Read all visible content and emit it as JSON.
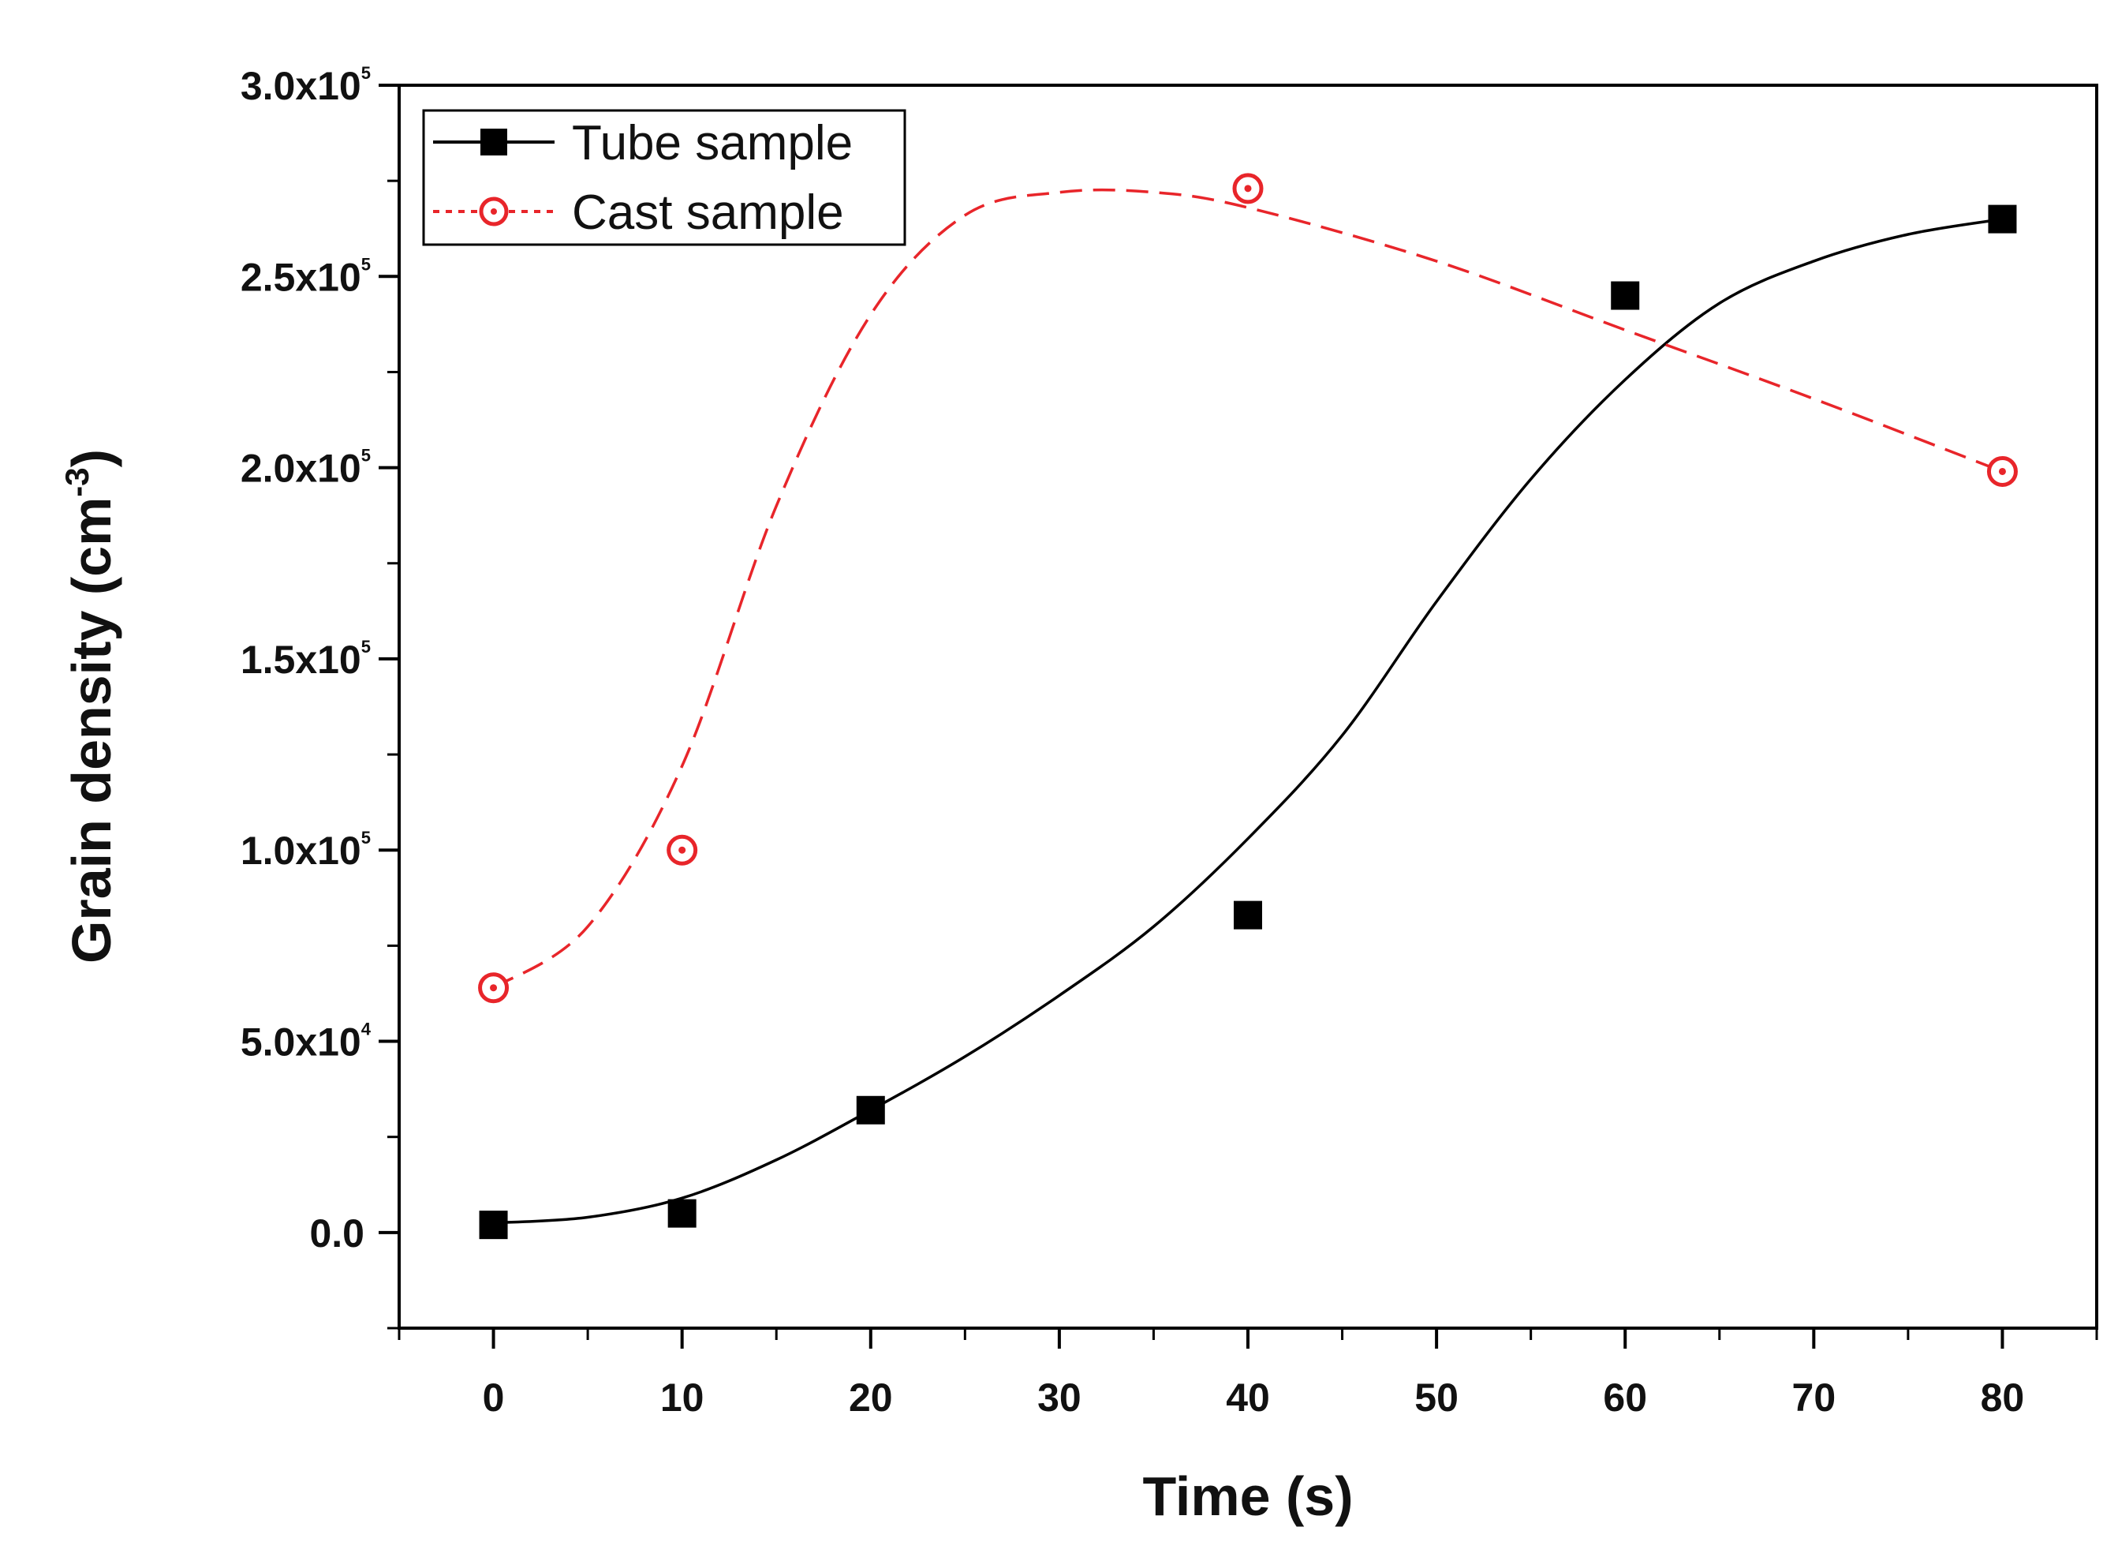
{
  "chart_data": {
    "type": "scatter",
    "title": "",
    "xlabel": "Time (s)",
    "ylabel": "Grain density (cm",
    "ylabel_superscript": "-3",
    "ylabel_close": ")",
    "xlim": [
      -5,
      85
    ],
    "ylim": [
      -25000,
      300000
    ],
    "x_ticks": [
      {
        "value": 0,
        "label": "0"
      },
      {
        "value": 10,
        "label": "10"
      },
      {
        "value": 20,
        "label": "20"
      },
      {
        "value": 30,
        "label": "30"
      },
      {
        "value": 40,
        "label": "40"
      },
      {
        "value": 50,
        "label": "50"
      },
      {
        "value": 60,
        "label": "60"
      },
      {
        "value": 70,
        "label": "70"
      },
      {
        "value": 80,
        "label": "80"
      }
    ],
    "y_ticks": [
      {
        "value": 0,
        "mantissa": "0.0",
        "exponent": ""
      },
      {
        "value": 50000,
        "mantissa": "5.0x10",
        "exponent": "4"
      },
      {
        "value": 100000,
        "mantissa": "1.0x10",
        "exponent": "5"
      },
      {
        "value": 150000,
        "mantissa": "1.5x10",
        "exponent": "5"
      },
      {
        "value": 200000,
        "mantissa": "2.0x10",
        "exponent": "5"
      },
      {
        "value": 250000,
        "mantissa": "2.5x10",
        "exponent": "5"
      },
      {
        "value": 300000,
        "mantissa": "3.0x10",
        "exponent": "5"
      }
    ],
    "legend_position": "top-left",
    "series": [
      {
        "name": "Tube sample",
        "marker": "filled-square",
        "color": "#000000",
        "line_style": "solid",
        "points": [
          [
            0,
            2000
          ],
          [
            10,
            5000
          ],
          [
            20,
            32000
          ],
          [
            40,
            83000
          ],
          [
            60,
            245000
          ],
          [
            80,
            265000
          ]
        ],
        "fit_curve": [
          [
            0,
            2500
          ],
          [
            5,
            4000
          ],
          [
            10,
            9000
          ],
          [
            15,
            19000
          ],
          [
            20,
            32000
          ],
          [
            25,
            46000
          ],
          [
            30,
            62000
          ],
          [
            35,
            80000
          ],
          [
            40,
            103000
          ],
          [
            45,
            130000
          ],
          [
            50,
            165000
          ],
          [
            55,
            197000
          ],
          [
            60,
            223000
          ],
          [
            65,
            243000
          ],
          [
            70,
            254000
          ],
          [
            75,
            261000
          ],
          [
            80,
            265000
          ]
        ]
      },
      {
        "name": "Cast sample",
        "marker": "open-circle",
        "color": "#e8252a",
        "line_style": "dashed",
        "points": [
          [
            0,
            64000
          ],
          [
            10,
            100000
          ],
          [
            40,
            273000
          ],
          [
            80,
            199000
          ]
        ],
        "fit_curve": [
          [
            0,
            64000
          ],
          [
            5,
            80000
          ],
          [
            10,
            122000
          ],
          [
            15,
            190000
          ],
          [
            20,
            240000
          ],
          [
            25,
            266000
          ],
          [
            30,
            272000
          ],
          [
            35,
            272000
          ],
          [
            40,
            268000
          ],
          [
            50,
            254000
          ],
          [
            60,
            236000
          ],
          [
            70,
            218000
          ],
          [
            80,
            199000
          ]
        ]
      }
    ]
  }
}
